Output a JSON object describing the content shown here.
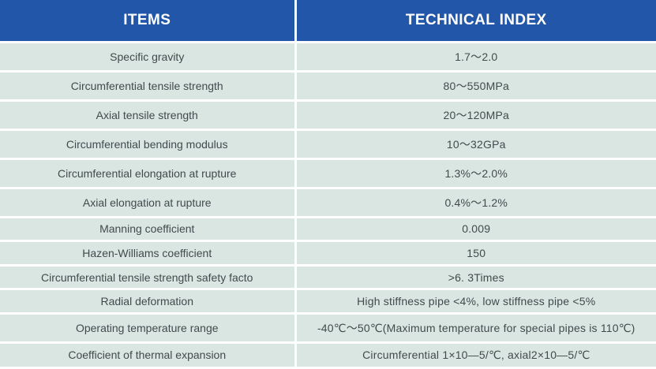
{
  "table": {
    "columns": [
      "ITEMS",
      "TECHNICAL INDEX"
    ],
    "rows": [
      {
        "item": "Specific gravity",
        "value": "1.7～2.0"
      },
      {
        "item": "Circumferential tensile strength",
        "value": "80～550MPa"
      },
      {
        "item": "Axial tensile strength",
        "value": "20～120MPa"
      },
      {
        "item": "Circumferential bending modulus",
        "value": "10～32GPa"
      },
      {
        "item": "Circumferential elongation at rupture",
        "value": "1.3%～2.0%"
      },
      {
        "item": "Axial elongation at rupture",
        "value": "0.4%～1.2%"
      },
      {
        "item": "Manning coefficient",
        "value": "0.009"
      },
      {
        "item": "Hazen-Williams coefficient",
        "value": "150"
      },
      {
        "item": "Circumferential tensile strength safety facto",
        "value": ">6. 3Times"
      },
      {
        "item": "Radial deformation",
        "value": "High stiffness pipe <4%, low stiffness pipe <5%"
      },
      {
        "item": "Operating temperature range",
        "value": "-40℃～50℃(Maximum temperature for special pipes is 110℃)"
      },
      {
        "item": "Coefficient of thermal expansion",
        "value": "Circumferential 1×10—5/℃, axial2×10—5/℃"
      }
    ]
  },
  "colors": {
    "header_bg": "#2156a8",
    "header_text": "#ffffff",
    "row_bg": "#d9e6e2",
    "separator": "#ffffff",
    "body_text": "#424a4d"
  }
}
